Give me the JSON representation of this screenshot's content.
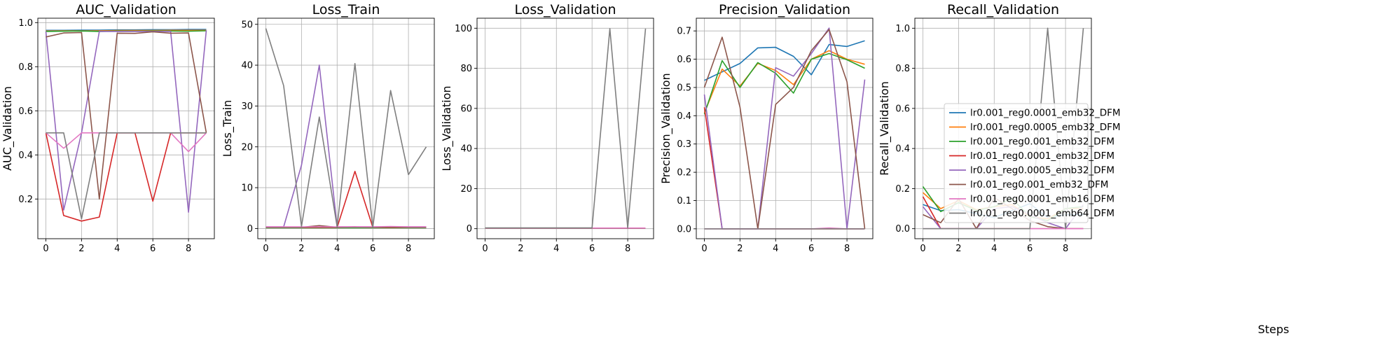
{
  "chart_data": {
    "type": "line",
    "shared_xlabel": "Steps",
    "x": [
      0,
      1,
      2,
      3,
      4,
      5,
      6,
      7,
      8,
      9
    ],
    "xlim": [
      -0.45,
      9.45
    ],
    "xticks": [
      0,
      2,
      4,
      6,
      8
    ],
    "legend_placement": "center-right of last panel",
    "grid": true,
    "series_styles": [
      {
        "name": "lr0.001_reg0.0001_emb32_DFM",
        "color": "#1f77b4"
      },
      {
        "name": "lr0.001_reg0.0005_emb32_DFM",
        "color": "#ff7f0e"
      },
      {
        "name": "lr0.001_reg0.001_emb32_DFM",
        "color": "#2ca02c"
      },
      {
        "name": "lr0.01_reg0.0001_emb32_DFM",
        "color": "#d62728"
      },
      {
        "name": "lr0.01_reg0.0005_emb32_DFM",
        "color": "#9467bd"
      },
      {
        "name": "lr0.01_reg0.001_emb32_DFM",
        "color": "#8c564b"
      },
      {
        "name": "lr0.01_reg0.0001_emb16_DFM",
        "color": "#e377c2"
      },
      {
        "name": "lr0.01_reg0.0001_emb64_DFM",
        "color": "#7f7f7f"
      }
    ],
    "panels": [
      {
        "title": "AUC_Validation",
        "ylabel": "AUC_Validation",
        "ylim": [
          0.02,
          1.02
        ],
        "yticks": [
          0.2,
          0.4,
          0.6,
          0.8,
          1.0
        ],
        "ytick_labels": [
          "0.2",
          "0.4",
          "0.6",
          "0.8",
          "1.0"
        ],
        "series": [
          {
            "name": "lr0.001_reg0.0001_emb32_DFM",
            "values": [
              0.965,
              0.965,
              0.966,
              0.966,
              0.967,
              0.967,
              0.968,
              0.968,
              0.969,
              0.969
            ]
          },
          {
            "name": "lr0.001_reg0.0005_emb32_DFM",
            "values": [
              0.962,
              0.963,
              0.963,
              0.963,
              0.964,
              0.964,
              0.964,
              0.965,
              0.965,
              0.965
            ]
          },
          {
            "name": "lr0.001_reg0.001_emb32_DFM",
            "values": [
              0.96,
              0.961,
              0.962,
              0.96,
              0.962,
              0.961,
              0.962,
              0.962,
              0.961,
              0.963
            ]
          },
          {
            "name": "lr0.01_reg0.0001_emb32_DFM",
            "values": [
              0.5,
              0.125,
              0.1,
              0.118,
              0.5,
              0.5,
              0.19,
              0.5,
              0.5,
              0.5
            ]
          },
          {
            "name": "lr0.01_reg0.0005_emb32_DFM",
            "values": [
              0.96,
              0.15,
              0.5,
              0.96,
              0.96,
              0.96,
              0.96,
              0.96,
              0.14,
              0.965
            ]
          },
          {
            "name": "lr0.01_reg0.001_emb32_DFM",
            "values": [
              0.935,
              0.953,
              0.955,
              0.2,
              0.952,
              0.951,
              0.958,
              0.952,
              0.953,
              0.5
            ]
          },
          {
            "name": "lr0.01_reg0.0001_emb16_DFM",
            "values": [
              0.5,
              0.43,
              0.5,
              0.5,
              0.5,
              0.5,
              0.5,
              0.5,
              0.415,
              0.5
            ]
          },
          {
            "name": "lr0.01_reg0.0001_emb64_DFM",
            "values": [
              0.5,
              0.5,
              0.11,
              0.5,
              0.5,
              0.5,
              0.5,
              0.5,
              0.5,
              0.5
            ]
          }
        ]
      },
      {
        "title": "Loss_Train",
        "ylabel": "Loss_Train",
        "ylim": [
          -2.5,
          51.5
        ],
        "yticks": [
          0,
          10,
          20,
          30,
          40,
          50
        ],
        "ytick_labels": [
          "0",
          "10",
          "20",
          "30",
          "40",
          "50"
        ],
        "series": [
          {
            "name": "lr0.001_reg0.0001_emb32_DFM",
            "values": [
              0.2,
              0.2,
              0.2,
              0.2,
              0.2,
              0.2,
              0.2,
              0.2,
              0.2,
              0.2
            ]
          },
          {
            "name": "lr0.001_reg0.0005_emb32_DFM",
            "values": [
              0.2,
              0.2,
              0.2,
              0.2,
              0.2,
              0.2,
              0.2,
              0.2,
              0.2,
              0.2
            ]
          },
          {
            "name": "lr0.001_reg0.001_emb32_DFM",
            "values": [
              0.2,
              0.2,
              0.2,
              0.2,
              0.2,
              0.2,
              0.2,
              0.2,
              0.2,
              0.2
            ]
          },
          {
            "name": "lr0.01_reg0.0001_emb32_DFM",
            "values": [
              0.3,
              0.3,
              0.3,
              0.3,
              0.3,
              14.0,
              0.3,
              0.3,
              0.3,
              0.3
            ]
          },
          {
            "name": "lr0.01_reg0.0005_emb32_DFM",
            "values": [
              0.4,
              0.4,
              15.5,
              40.0,
              0.4,
              0.4,
              0.4,
              0.4,
              0.4,
              0.4
            ]
          },
          {
            "name": "lr0.01_reg0.001_emb32_DFM",
            "values": [
              0.3,
              0.3,
              0.3,
              0.7,
              0.3,
              0.4,
              0.3,
              0.4,
              0.3,
              0.3
            ]
          },
          {
            "name": "lr0.01_reg0.0001_emb16_DFM",
            "values": [
              0.4,
              0.4,
              0.4,
              0.4,
              0.4,
              0.4,
              0.4,
              0.5,
              0.4,
              0.4
            ]
          },
          {
            "name": "lr0.01_reg0.0001_emb64_DFM",
            "values": [
              49.0,
              35.0,
              0.5,
              27.3,
              0.4,
              40.4,
              0.3,
              33.8,
              13.2,
              20.0
            ]
          }
        ]
      },
      {
        "title": "Loss_Validation",
        "ylabel": "Loss_Validation",
        "ylim": [
          -5,
          105
        ],
        "yticks": [
          0,
          20,
          40,
          60,
          80,
          100
        ],
        "ytick_labels": [
          "0",
          "20",
          "40",
          "60",
          "80",
          "100"
        ],
        "series": [
          {
            "name": "lr0.001_reg0.0001_emb32_DFM",
            "values": [
              0.2,
              0.2,
              0.2,
              0.2,
              0.2,
              0.2,
              0.2,
              0.2,
              0.2,
              0.2
            ]
          },
          {
            "name": "lr0.001_reg0.0005_emb32_DFM",
            "values": [
              0.2,
              0.2,
              0.2,
              0.2,
              0.2,
              0.2,
              0.2,
              0.2,
              0.2,
              0.2
            ]
          },
          {
            "name": "lr0.001_reg0.001_emb32_DFM",
            "values": [
              0.2,
              0.2,
              0.2,
              0.2,
              0.2,
              0.2,
              0.2,
              0.2,
              0.2,
              0.2
            ]
          },
          {
            "name": "lr0.01_reg0.0001_emb32_DFM",
            "values": [
              0.3,
              0.3,
              0.3,
              0.3,
              0.3,
              0.3,
              0.3,
              0.3,
              0.3,
              0.3
            ]
          },
          {
            "name": "lr0.01_reg0.0005_emb32_DFM",
            "values": [
              0.3,
              0.3,
              0.3,
              0.3,
              0.3,
              0.3,
              0.3,
              0.3,
              0.3,
              0.3
            ]
          },
          {
            "name": "lr0.01_reg0.001_emb32_DFM",
            "values": [
              0.3,
              0.3,
              0.3,
              0.3,
              0.3,
              0.3,
              0.3,
              0.3,
              0.3,
              0.3
            ]
          },
          {
            "name": "lr0.01_reg0.0001_emb16_DFM",
            "values": [
              0.3,
              0.3,
              0.3,
              0.3,
              0.3,
              0.3,
              0.3,
              0.3,
              0.3,
              0.3
            ]
          },
          {
            "name": "lr0.01_reg0.0001_emb64_DFM",
            "values": [
              0.4,
              0.4,
              0.4,
              0.4,
              0.4,
              0.4,
              0.4,
              99.8,
              0.4,
              99.8
            ]
          }
        ]
      },
      {
        "title": "Precision_Validation",
        "ylabel": "Precision_Validation",
        "ylim": [
          -0.035,
          0.745
        ],
        "yticks": [
          0.0,
          0.1,
          0.2,
          0.3,
          0.4,
          0.5,
          0.6,
          0.7
        ],
        "ytick_labels": [
          "0.0",
          "0.1",
          "0.2",
          "0.3",
          "0.4",
          "0.5",
          "0.6",
          "0.7"
        ],
        "series": [
          {
            "name": "lr0.001_reg0.0001_emb32_DFM",
            "values": [
              0.525,
              0.555,
              0.585,
              0.64,
              0.642,
              0.61,
              0.545,
              0.652,
              0.645,
              0.665
            ]
          },
          {
            "name": "lr0.001_reg0.0005_emb32_DFM",
            "values": [
              0.41,
              0.565,
              0.505,
              0.585,
              0.56,
              0.51,
              0.6,
              0.63,
              0.6,
              0.582
            ]
          },
          {
            "name": "lr0.001_reg0.001_emb32_DFM",
            "values": [
              0.405,
              0.595,
              0.5,
              0.588,
              0.55,
              0.48,
              0.6,
              0.62,
              0.598,
              0.568
            ]
          },
          {
            "name": "lr0.01_reg0.0001_emb32_DFM",
            "values": [
              0.43,
              0.0,
              0.0,
              0.0,
              0.0,
              0.0,
              0.0,
              0.0,
              0.0,
              0.0
            ]
          },
          {
            "name": "lr0.01_reg0.0005_emb32_DFM",
            "values": [
              0.475,
              0.0,
              0.0,
              0.0,
              0.57,
              0.54,
              0.62,
              0.71,
              0.0,
              0.528
            ]
          },
          {
            "name": "lr0.01_reg0.001_emb32_DFM",
            "values": [
              0.5,
              0.678,
              0.43,
              0.0,
              0.44,
              0.5,
              0.63,
              0.705,
              0.52,
              0.0
            ]
          },
          {
            "name": "lr0.01_reg0.0001_emb16_DFM",
            "values": [
              0.0,
              0.0,
              0.0,
              0.0,
              0.0,
              0.0,
              0.0,
              0.003,
              0.0,
              0.0
            ]
          },
          {
            "name": "lr0.01_reg0.0001_emb64_DFM",
            "values": [
              0.0,
              0.0,
              0.0,
              0.0,
              0.0,
              0.0,
              0.0,
              0.0,
              0.0,
              0.0
            ]
          }
        ]
      },
      {
        "title": "Recall_Validation",
        "ylabel": "Recall_Validation",
        "ylim": [
          -0.05,
          1.05
        ],
        "yticks": [
          0.0,
          0.2,
          0.4,
          0.6,
          0.8,
          1.0
        ],
        "ytick_labels": [
          "0.0",
          "0.2",
          "0.4",
          "0.6",
          "0.8",
          "1.0"
        ],
        "xlabel": "Steps",
        "series": [
          {
            "name": "lr0.001_reg0.0001_emb32_DFM",
            "values": [
              0.12,
              0.09,
              0.095,
              0.075,
              0.055,
              0.09,
              0.125,
              0.055,
              0.07,
              0.07
            ]
          },
          {
            "name": "lr0.001_reg0.0005_emb32_DFM",
            "values": [
              0.18,
              0.1,
              0.14,
              0.095,
              0.11,
              0.12,
              0.06,
              0.05,
              0.1,
              0.1
            ]
          },
          {
            "name": "lr0.001_reg0.001_emb32_DFM",
            "values": [
              0.21,
              0.085,
              0.13,
              0.09,
              0.11,
              0.15,
              0.06,
              0.04,
              0.1,
              0.11
            ]
          },
          {
            "name": "lr0.01_reg0.0001_emb32_DFM",
            "values": [
              0.16,
              0.0,
              0.0,
              0.0,
              0.0,
              0.0,
              0.0,
              0.0,
              0.0,
              0.0
            ]
          },
          {
            "name": "lr0.01_reg0.0005_emb32_DFM",
            "values": [
              0.11,
              0.0,
              0.0,
              0.0,
              0.1,
              0.11,
              0.07,
              0.03,
              0.0,
              0.12
            ]
          },
          {
            "name": "lr0.01_reg0.001_emb32_DFM",
            "values": [
              0.07,
              0.03,
              0.15,
              0.0,
              0.155,
              0.1,
              0.04,
              0.01,
              0.0,
              0.0
            ]
          },
          {
            "name": "lr0.01_reg0.0001_emb16_DFM",
            "values": [
              0.0,
              0.0,
              0.0,
              0.0,
              0.0,
              0.0,
              0.0,
              0.0,
              0.0,
              0.0
            ]
          },
          {
            "name": "lr0.01_reg0.0001_emb64_DFM",
            "values": [
              0.0,
              0.0,
              0.0,
              0.0,
              0.0,
              0.0,
              0.0,
              1.0,
              0.0,
              1.0
            ]
          }
        ]
      }
    ]
  }
}
